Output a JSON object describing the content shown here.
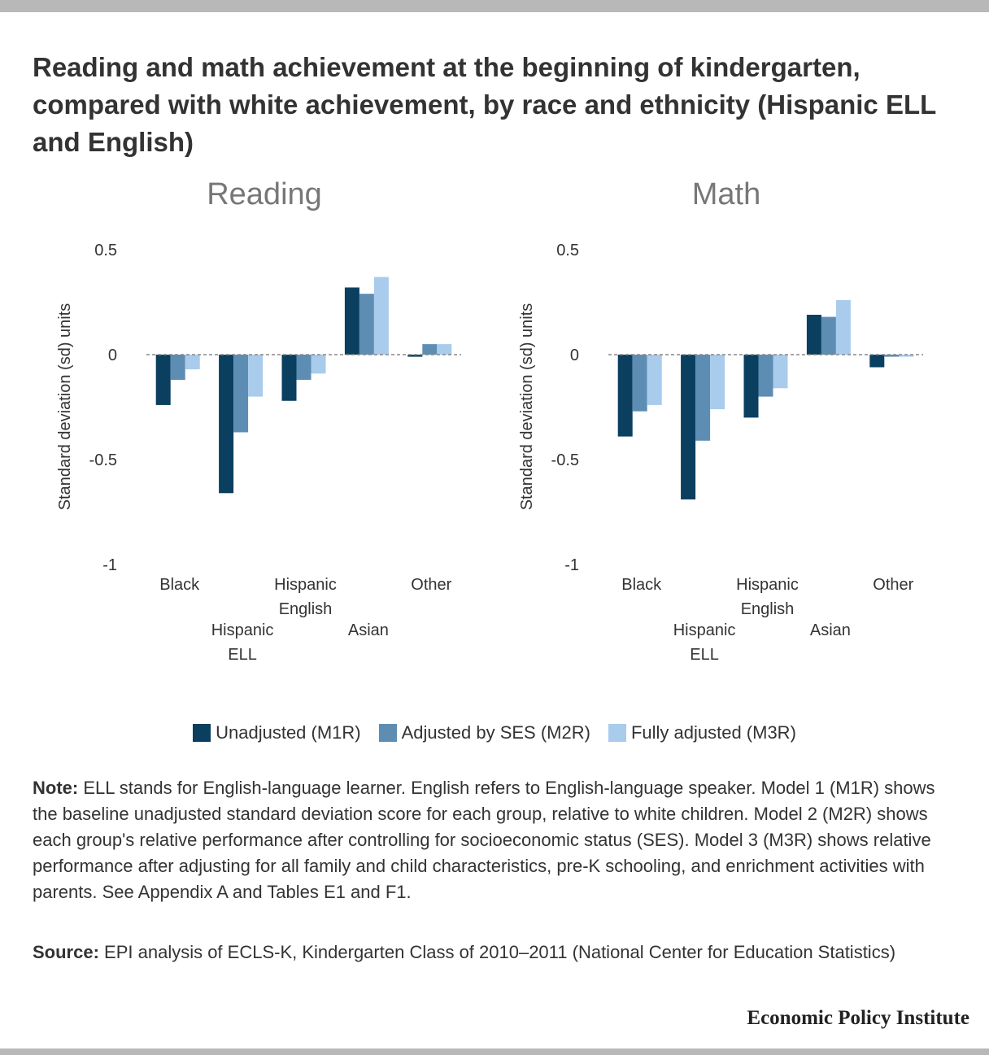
{
  "title": "Reading and math achievement at the beginning of kindergarten, compared with white achievement, by race and ethnicity (Hispanic ELL and English)",
  "colors": {
    "m1": "#0b3f60",
    "m2": "#5d8db3",
    "m3": "#a9cbec",
    "zero_line": "#888888",
    "top_bar": "#b8b8b8"
  },
  "legend": [
    {
      "label": "Unadjusted (M1R)",
      "color": "#0b3f60"
    },
    {
      "label": "Adjusted by SES (M2R)",
      "color": "#5d8db3"
    },
    {
      "label": "Fully adjusted (M3R)",
      "color": "#a9cbec"
    }
  ],
  "chart_data": [
    {
      "type": "bar",
      "title": "Reading",
      "ylabel": "Standard deviation (sd) units",
      "ylim": [
        -1,
        0.5
      ],
      "yticks": [
        "0.5",
        "0",
        "-0.5",
        "-1"
      ],
      "categories": [
        "Black",
        "Hispanic ELL",
        "Hispanic English",
        "Asian",
        "Other"
      ],
      "series": [
        {
          "name": "Unadjusted (M1R)",
          "values": [
            -0.24,
            -0.66,
            -0.22,
            0.32,
            -0.01
          ]
        },
        {
          "name": "Adjusted by SES (M2R)",
          "values": [
            -0.12,
            -0.37,
            -0.12,
            0.29,
            0.05
          ]
        },
        {
          "name": "Fully adjusted (M3R)",
          "values": [
            -0.07,
            -0.2,
            -0.09,
            0.37,
            0.05
          ]
        }
      ],
      "zero_line": "dashed"
    },
    {
      "type": "bar",
      "title": "Math",
      "ylabel": "Standard deviation (sd) units",
      "ylim": [
        -1,
        0.5
      ],
      "yticks": [
        "0.5",
        "0",
        "-0.5",
        "-1"
      ],
      "categories": [
        "Black",
        "Hispanic ELL",
        "Hispanic English",
        "Asian",
        "Other"
      ],
      "series": [
        {
          "name": "Unadjusted (M1R)",
          "values": [
            -0.39,
            -0.69,
            -0.3,
            0.19,
            -0.06
          ]
        },
        {
          "name": "Adjusted by SES (M2R)",
          "values": [
            -0.27,
            -0.41,
            -0.2,
            0.18,
            -0.01
          ]
        },
        {
          "name": "Fully adjusted (M3R)",
          "values": [
            -0.24,
            -0.26,
            -0.16,
            0.26,
            -0.01
          ]
        }
      ],
      "zero_line": "dashed"
    }
  ],
  "note": {
    "lead": "Note:",
    "text": " ELL stands for English-language learner. English refers to English-language speaker. Model 1 (M1R) shows the baseline unadjusted standard deviation score for each group, relative to white children. Model 2 (M2R) shows each group's relative performance after controlling for socioeconomic status (SES). Model 3 (M3R) shows relative performance after adjusting for all family and child characteristics, pre-K schooling, and enrichment activities with parents. See Appendix A and Tables E1 and F1."
  },
  "source": {
    "lead": "Source:",
    "text": " EPI analysis of ECLS-K, Kindergarten Class of 2010–2011 (National Center for Education Statistics)"
  },
  "brand": "Economic Policy Institute"
}
